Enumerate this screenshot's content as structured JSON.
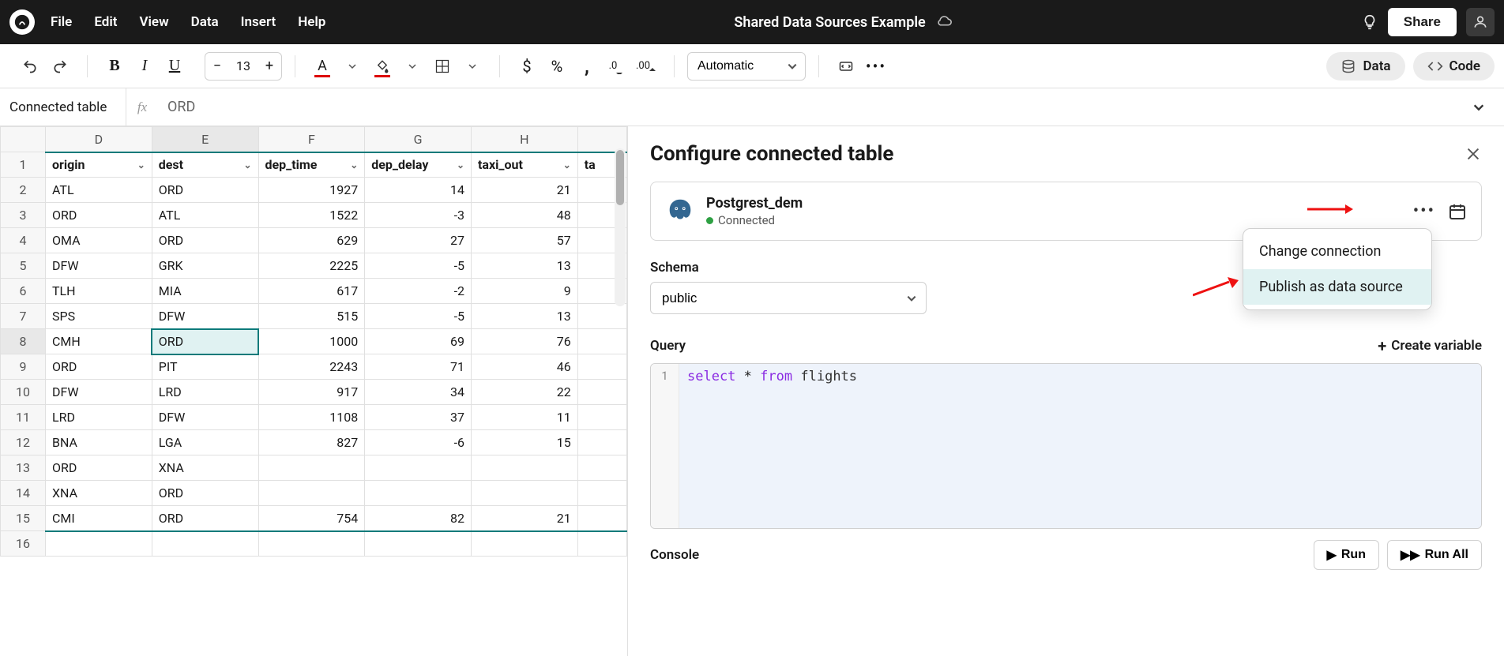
{
  "menubar": {
    "items": [
      "File",
      "Edit",
      "View",
      "Data",
      "Insert",
      "Help"
    ],
    "doc_title": "Shared Data Sources Example",
    "share_label": "Share"
  },
  "toolbar": {
    "font_size": "13",
    "wrap_label": "Automatic",
    "data_pill": "Data",
    "code_pill": "Code"
  },
  "formula_bar": {
    "cell_ref": "Connected table",
    "fx": "fx",
    "value": "ORD"
  },
  "sheet": {
    "col_letters": [
      "D",
      "E",
      "F",
      "G",
      "H"
    ],
    "headers": [
      "origin",
      "dest",
      "dep_time",
      "dep_delay",
      "taxi_out"
    ],
    "partial_header": "ta",
    "selected": {
      "row": 8,
      "col": "E"
    },
    "rows": [
      {
        "n": 2,
        "cells": [
          "ATL",
          "ORD",
          "1927",
          "14",
          "21"
        ]
      },
      {
        "n": 3,
        "cells": [
          "ORD",
          "ATL",
          "1522",
          "-3",
          "48"
        ]
      },
      {
        "n": 4,
        "cells": [
          "OMA",
          "ORD",
          "629",
          "27",
          "57"
        ]
      },
      {
        "n": 5,
        "cells": [
          "DFW",
          "GRK",
          "2225",
          "-5",
          "13"
        ]
      },
      {
        "n": 6,
        "cells": [
          "TLH",
          "MIA",
          "617",
          "-2",
          "9"
        ]
      },
      {
        "n": 7,
        "cells": [
          "SPS",
          "DFW",
          "515",
          "-5",
          "13"
        ]
      },
      {
        "n": 8,
        "cells": [
          "CMH",
          "ORD",
          "1000",
          "69",
          "76"
        ]
      },
      {
        "n": 9,
        "cells": [
          "ORD",
          "PIT",
          "2243",
          "71",
          "46"
        ]
      },
      {
        "n": 10,
        "cells": [
          "DFW",
          "LRD",
          "917",
          "34",
          "22"
        ]
      },
      {
        "n": 11,
        "cells": [
          "LRD",
          "DFW",
          "1108",
          "37",
          "11"
        ]
      },
      {
        "n": 12,
        "cells": [
          "BNA",
          "LGA",
          "827",
          "-6",
          "15"
        ]
      },
      {
        "n": 13,
        "cells": [
          "ORD",
          "XNA",
          "",
          "",
          ""
        ]
      },
      {
        "n": 14,
        "cells": [
          "XNA",
          "ORD",
          "",
          "",
          ""
        ]
      },
      {
        "n": 15,
        "cells": [
          "CMI",
          "ORD",
          "754",
          "82",
          "21"
        ]
      },
      {
        "n": 16,
        "cells": [
          "",
          "",
          "",
          "",
          ""
        ]
      }
    ]
  },
  "panel": {
    "title": "Configure connected table",
    "connection": {
      "name": "Postgrest_dem",
      "status": "Connected"
    },
    "dropdown": {
      "change": "Change connection",
      "publish": "Publish as data source"
    },
    "schema": {
      "label": "Schema",
      "value": "public"
    },
    "query": {
      "label": "Query",
      "create_variable": "Create variable",
      "line_no": "1",
      "code": {
        "kw1": "select",
        "star": "*",
        "kw2": "from",
        "ident": "flights"
      }
    },
    "footer": {
      "console": "Console",
      "run": "Run",
      "run_all": "Run All"
    }
  }
}
